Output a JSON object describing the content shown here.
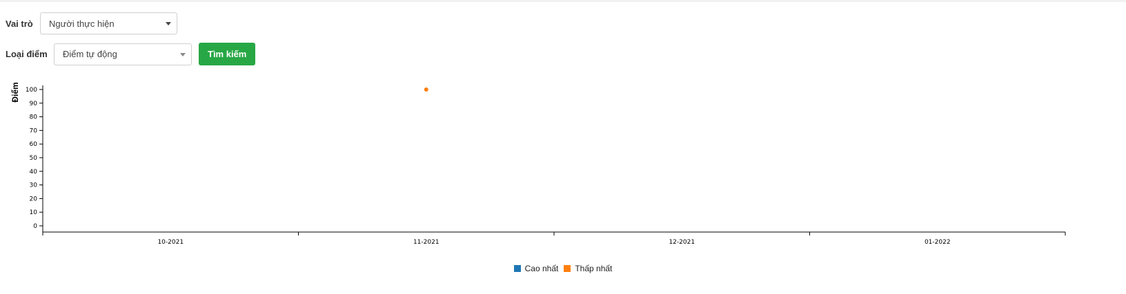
{
  "filters": {
    "role": {
      "label": "Vai trò",
      "value": "Người thực hiện"
    },
    "score_type": {
      "label": "Loại điểm",
      "value": "Điểm tự động"
    },
    "search_button": "Tìm kiếm"
  },
  "colors": {
    "accent": "#28a745",
    "series_high": "#1f77b4",
    "series_low": "#ff7f0e"
  },
  "chart_data": {
    "type": "scatter",
    "ylabel": "Điểm",
    "xlabel": "",
    "categories": [
      "10-2021",
      "11-2021",
      "12-2021",
      "01-2022"
    ],
    "ylim": [
      0,
      100
    ],
    "yticks": [
      0,
      10,
      20,
      30,
      40,
      50,
      60,
      70,
      80,
      90,
      100
    ],
    "grid": false,
    "legend_position": "bottom-center",
    "series": [
      {
        "name": "Cao nhất",
        "color": "#1f77b4",
        "points": []
      },
      {
        "name": "Thấp nhất",
        "color": "#ff7f0e",
        "points": [
          {
            "x": "11-2021",
            "y": 100
          }
        ]
      }
    ]
  }
}
